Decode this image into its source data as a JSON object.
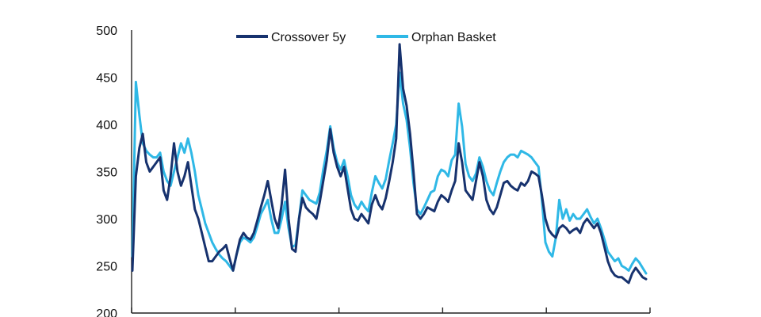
{
  "chart_data": {
    "type": "line",
    "title": "",
    "xlabel": "",
    "ylabel": "",
    "ylim": [
      200,
      500
    ],
    "yticks": [
      200,
      250,
      300,
      350,
      400,
      450,
      500
    ],
    "x_tick_count": 5,
    "grid": false,
    "legend_position": "top-center",
    "series": [
      {
        "name": "Crossover 5y",
        "color": "#17326e",
        "values": [
          245,
          345,
          375,
          390,
          360,
          350,
          355,
          360,
          365,
          330,
          320,
          345,
          380,
          350,
          335,
          345,
          360,
          335,
          310,
          300,
          285,
          270,
          255,
          255,
          260,
          265,
          268,
          272,
          258,
          245,
          262,
          278,
          285,
          280,
          278,
          285,
          298,
          312,
          325,
          340,
          320,
          300,
          290,
          315,
          352,
          300,
          268,
          265,
          300,
          322,
          312,
          308,
          305,
          300,
          318,
          340,
          362,
          395,
          370,
          355,
          345,
          355,
          332,
          310,
          300,
          298,
          305,
          300,
          295,
          315,
          325,
          315,
          310,
          322,
          340,
          360,
          385,
          485,
          438,
          420,
          390,
          350,
          305,
          300,
          305,
          312,
          310,
          308,
          318,
          325,
          322,
          318,
          330,
          340,
          380,
          360,
          330,
          325,
          320,
          340,
          360,
          345,
          320,
          310,
          305,
          312,
          325,
          338,
          340,
          335,
          332,
          330,
          338,
          335,
          340,
          350,
          348,
          345,
          325,
          300,
          288,
          283,
          280,
          290,
          293,
          290,
          285,
          288,
          290,
          285,
          295,
          300,
          295,
          290,
          295,
          285,
          270,
          255,
          245,
          240,
          238,
          238,
          235,
          232,
          242,
          248,
          243,
          238,
          236
        ]
      },
      {
        "name": "Orphan Basket",
        "color": "#2fb8e6",
        "values": [
          260,
          445,
          410,
          380,
          372,
          368,
          365,
          365,
          370,
          350,
          340,
          335,
          350,
          365,
          380,
          370,
          385,
          370,
          350,
          325,
          310,
          295,
          285,
          275,
          268,
          262,
          258,
          255,
          250,
          245,
          262,
          275,
          280,
          278,
          275,
          280,
          292,
          305,
          312,
          320,
          300,
          285,
          285,
          300,
          318,
          290,
          270,
          272,
          300,
          330,
          325,
          320,
          318,
          316,
          328,
          352,
          372,
          398,
          375,
          360,
          352,
          362,
          345,
          325,
          315,
          310,
          318,
          312,
          308,
          328,
          345,
          338,
          332,
          342,
          362,
          380,
          400,
          455,
          422,
          405,
          375,
          338,
          310,
          305,
          312,
          320,
          328,
          330,
          345,
          352,
          350,
          345,
          362,
          368,
          422,
          398,
          358,
          345,
          340,
          348,
          365,
          355,
          340,
          330,
          325,
          338,
          350,
          360,
          365,
          368,
          368,
          365,
          372,
          370,
          368,
          365,
          360,
          355,
          320,
          275,
          265,
          260,
          280,
          320,
          300,
          310,
          298,
          305,
          300,
          300,
          305,
          310,
          302,
          295,
          300,
          290,
          278,
          265,
          260,
          255,
          258,
          250,
          248,
          245,
          252,
          258,
          254,
          248,
          242
        ]
      }
    ]
  }
}
